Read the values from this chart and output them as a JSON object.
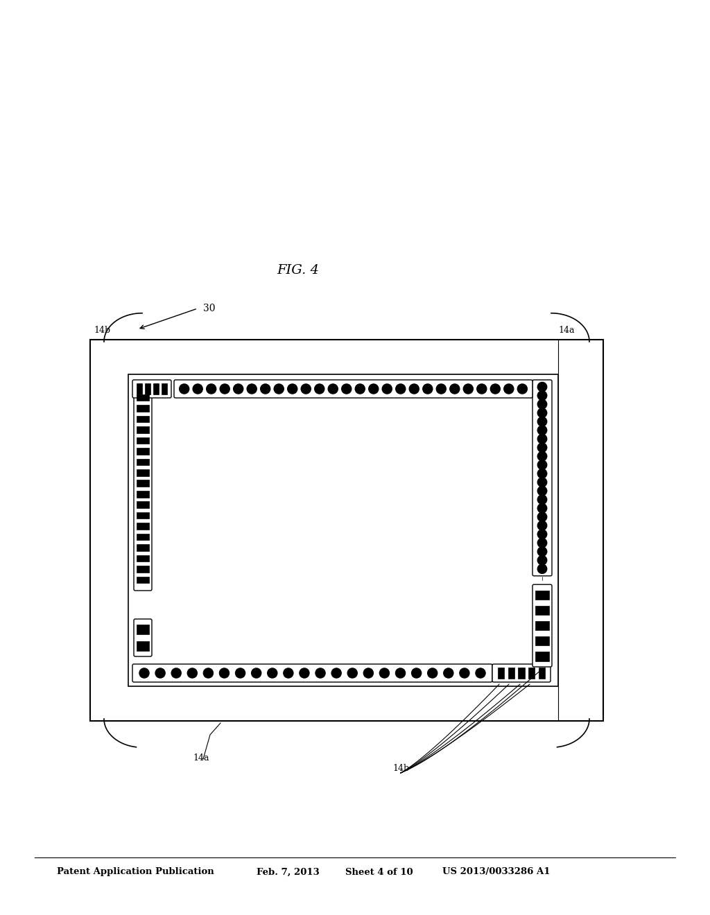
{
  "bg_color": "#ffffff",
  "header_text": "Patent Application Publication",
  "header_date": "Feb. 7, 2013",
  "header_sheet": "Sheet 4 of 10",
  "header_patent": "US 2013/0033286 A1",
  "fig_label": "FIG. 4",
  "label_14a_top": "14a",
  "label_14b_top": "14b",
  "label_14b_bot": "14b",
  "label_14a_bot": "14a",
  "label_30": "30"
}
